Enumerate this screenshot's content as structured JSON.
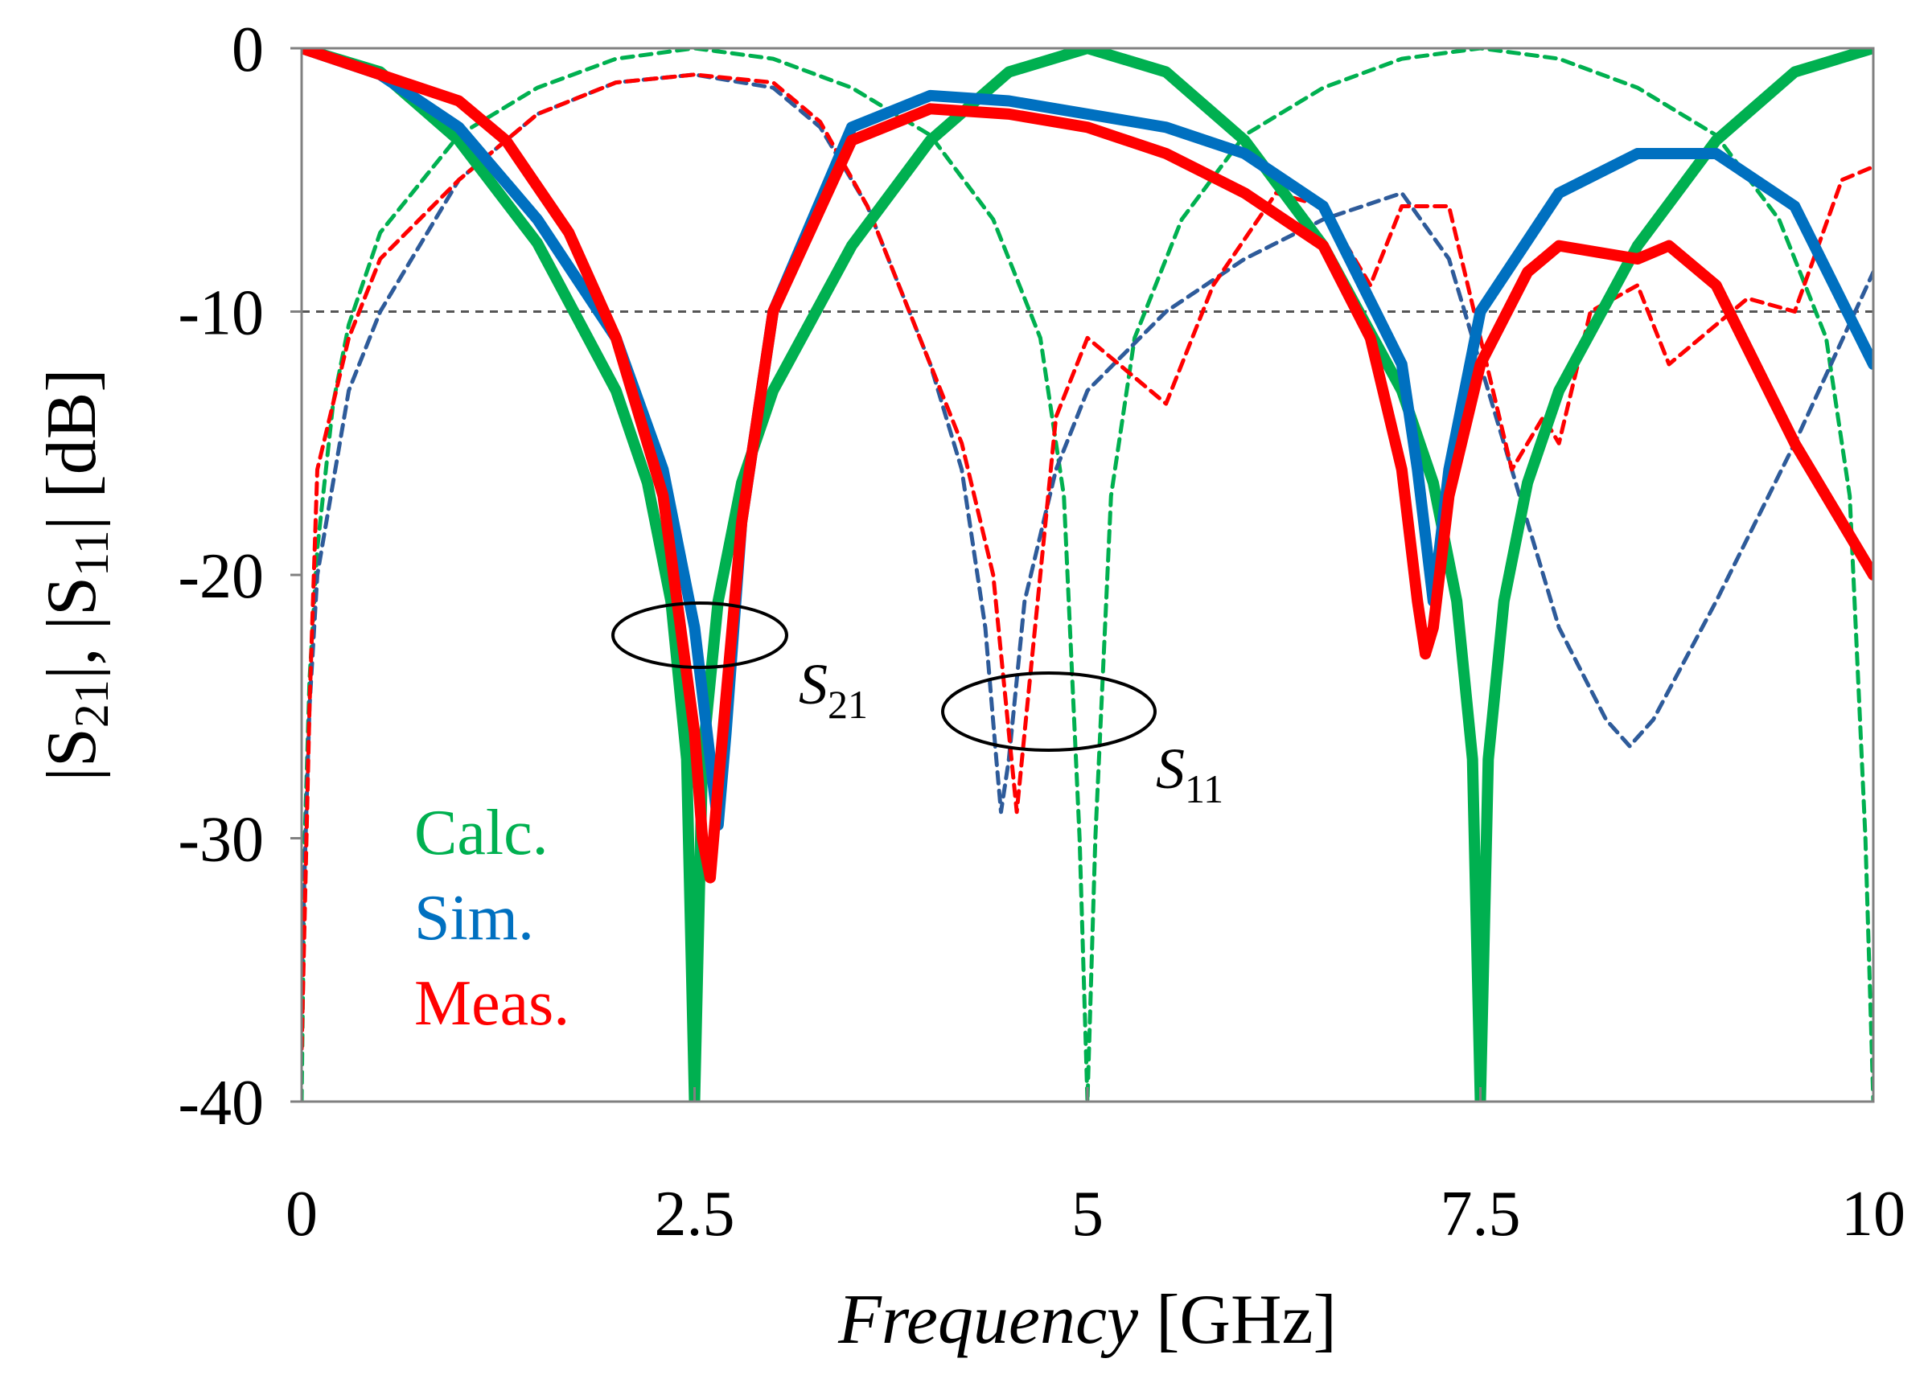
{
  "chart_data": {
    "type": "line",
    "title": "",
    "xlabel": {
      "italic": "Frequency",
      "unit": " [GHz]"
    },
    "ylabel": "|S21|, |S11| [dB]",
    "xlim": [
      0,
      10
    ],
    "ylim": [
      -40,
      0
    ],
    "xticks": [
      0,
      2.5,
      5,
      7.5,
      10
    ],
    "xtick_labels": [
      "0",
      "2.5",
      "5",
      "7.5",
      "10"
    ],
    "yticks": [
      0,
      -10,
      -20,
      -30,
      -40
    ],
    "ytick_labels": [
      "0",
      "-10",
      "-20",
      "-30",
      "-40"
    ],
    "reference_line": -10,
    "legend": [
      {
        "label": "Calc.",
        "color": "#00b050"
      },
      {
        "label": "Sim.",
        "color": "#0070c0"
      },
      {
        "label": "Meas.",
        "color": "#ff0000"
      }
    ],
    "annotations": [
      {
        "base": "S",
        "sub": "21",
        "target": "S21 curves near 2.6 GHz"
      },
      {
        "base": "S",
        "sub": "11",
        "target": "S11 curves near 4.5 GHz"
      }
    ],
    "series": [
      {
        "name": "Calc. |S21|",
        "color": "#00b050",
        "style": "solid",
        "x": [
          0,
          0.5,
          1,
          1.5,
          2,
          2.2,
          2.35,
          2.45,
          2.5,
          2.55,
          2.65,
          2.8,
          3,
          3.5,
          4,
          4.5,
          5,
          5.5,
          6,
          6.5,
          7,
          7.2,
          7.35,
          7.45,
          7.5,
          7.55,
          7.65,
          7.8,
          8,
          8.5,
          9,
          9.5,
          10
        ],
        "y": [
          0,
          -0.9,
          -3.5,
          -7.4,
          -13,
          -16.5,
          -21,
          -27,
          -40,
          -27,
          -21,
          -16.5,
          -13,
          -7.5,
          -3.5,
          -0.9,
          0,
          -0.9,
          -3.5,
          -7.5,
          -13,
          -16.5,
          -21,
          -27,
          -40,
          -27,
          -21,
          -16.5,
          -13,
          -7.5,
          -3.5,
          -0.9,
          0
        ]
      },
      {
        "name": "Sim. |S21|",
        "color": "#0070c0",
        "style": "solid",
        "x": [
          0,
          0.5,
          1,
          1.5,
          2,
          2.3,
          2.5,
          2.6,
          2.65,
          2.7,
          2.8,
          3,
          3.5,
          4,
          4.5,
          5,
          5.5,
          6,
          6.5,
          7,
          7.1,
          7.2,
          7.3,
          7.5,
          8,
          8.5,
          9,
          9.5,
          10
        ],
        "y": [
          0,
          -1,
          -3,
          -6.5,
          -11,
          -16,
          -22,
          -27,
          -29.5,
          -26,
          -18,
          -10,
          -3,
          -1.8,
          -2,
          -2.5,
          -3,
          -4,
          -6,
          -12,
          -16,
          -21,
          -16,
          -10,
          -5.5,
          -4,
          -4,
          -6,
          -12
        ]
      },
      {
        "name": "Meas. |S21|",
        "color": "#ff0000",
        "style": "solid",
        "x": [
          0,
          0.5,
          1,
          1.3,
          1.7,
          2,
          2.3,
          2.5,
          2.55,
          2.6,
          2.65,
          2.8,
          3,
          3.5,
          4,
          4.5,
          5,
          5.5,
          6,
          6.5,
          6.8,
          7,
          7.1,
          7.15,
          7.2,
          7.3,
          7.5,
          7.8,
          8,
          8.5,
          8.7,
          9,
          9.5,
          10
        ],
        "y": [
          0,
          -1,
          -2,
          -3.5,
          -7,
          -11,
          -17,
          -26,
          -30,
          -31.5,
          -28,
          -18,
          -10,
          -3.5,
          -2.3,
          -2.5,
          -3,
          -4,
          -5.5,
          -7.5,
          -11,
          -16,
          -21,
          -23,
          -22,
          -17,
          -12,
          -8.5,
          -7.5,
          -8,
          -7.5,
          -9,
          -15,
          -20
        ]
      },
      {
        "name": "Calc. |S11|",
        "color": "#00b050",
        "style": "dashed",
        "x": [
          0,
          0.02,
          0.05,
          0.1,
          0.2,
          0.3,
          0.5,
          1,
          1.5,
          2,
          2.5,
          3,
          3.5,
          4,
          4.4,
          4.7,
          4.85,
          4.95,
          5,
          5.05,
          5.15,
          5.3,
          5.6,
          6,
          6.5,
          7,
          7.5,
          8,
          8.5,
          9,
          9.4,
          9.7,
          9.85,
          9.95,
          10
        ],
        "y": [
          -40,
          -30,
          -24,
          -19,
          -13.5,
          -10.5,
          -7,
          -3.3,
          -1.5,
          -0.4,
          0,
          -0.4,
          -1.5,
          -3.3,
          -6.5,
          -11,
          -17,
          -30,
          -40,
          -30,
          -17,
          -11,
          -6.5,
          -3.3,
          -1.5,
          -0.4,
          0,
          -0.4,
          -1.5,
          -3.3,
          -6.5,
          -11,
          -17,
          -30,
          -40
        ]
      },
      {
        "name": "Sim. |S11|",
        "color": "#2e5b9a",
        "style": "dashed",
        "x": [
          0,
          0.05,
          0.1,
          0.3,
          0.5,
          1,
          1.5,
          2,
          2.5,
          3,
          3.3,
          3.6,
          4,
          4.2,
          4.35,
          4.42,
          4.45,
          4.5,
          4.6,
          4.8,
          5,
          5.5,
          6,
          6.5,
          7,
          7.3,
          7.6,
          8,
          8.3,
          8.45,
          8.6,
          9,
          9.5,
          10
        ],
        "y": [
          -35,
          -25,
          -20,
          -13,
          -10,
          -5,
          -2.5,
          -1.3,
          -1,
          -1.5,
          -3,
          -6,
          -12,
          -16,
          -22,
          -27,
          -29,
          -27,
          -21,
          -16,
          -13,
          -10,
          -8,
          -6.5,
          -5.5,
          -8,
          -14,
          -22,
          -25.5,
          -26.5,
          -25.5,
          -21,
          -15,
          -8.5
        ]
      },
      {
        "name": "Meas. |S11|",
        "color": "#ff0000",
        "style": "dashed",
        "x": [
          0,
          0.05,
          0.1,
          0.3,
          0.5,
          1,
          1.5,
          2,
          2.5,
          3,
          3.3,
          3.6,
          3.8,
          4,
          4.2,
          4.4,
          4.5,
          4.55,
          4.6,
          4.8,
          5,
          5.2,
          5.5,
          5.8,
          6.2,
          6.5,
          6.8,
          7,
          7.3,
          7.5,
          7.7,
          7.9,
          8,
          8.2,
          8.5,
          8.7,
          8.9,
          9.2,
          9.5,
          9.8,
          10
        ],
        "y": [
          -38,
          -25,
          -16,
          -11,
          -8,
          -5,
          -2.5,
          -1.3,
          -1,
          -1.3,
          -2.8,
          -6,
          -9,
          -12,
          -15,
          -20,
          -26,
          -29,
          -26,
          -14,
          -11,
          -12,
          -13.5,
          -9,
          -5.5,
          -6,
          -9,
          -6,
          -6,
          -11,
          -16,
          -14,
          -15,
          -10,
          -9,
          -12,
          -11,
          -9.5,
          -10,
          -5,
          -4.5
        ]
      }
    ]
  }
}
